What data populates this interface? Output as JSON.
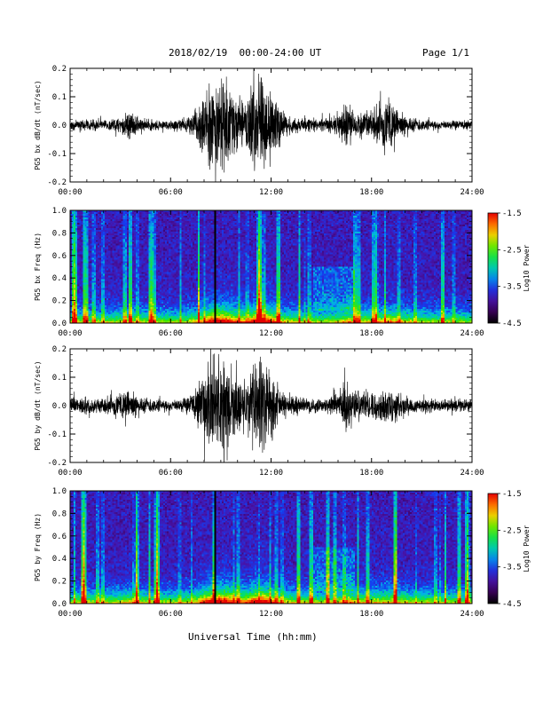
{
  "header": {
    "date_range": "2018/02/19  00:00-24:00 UT",
    "page": "Page 1/1"
  },
  "x_axis_title": "Universal Time (hh:mm)",
  "chart_data": [
    {
      "type": "line",
      "ylabel": "PG5 bx dB/dt (nT/sec)",
      "ylim": [
        -0.2,
        0.2
      ],
      "yticks": [
        "-0.2",
        "-0.1",
        "0.0",
        "0.1",
        "0.2"
      ],
      "xticks": [
        "00:00",
        "06:00",
        "12:00",
        "18:00",
        "24:00"
      ],
      "xlim_hours": [
        0,
        24
      ],
      "series": [
        {
          "envelope_hours": [
            0,
            1,
            2,
            3,
            3.5,
            4,
            5,
            6,
            7,
            7.5,
            8,
            8.5,
            9,
            9.5,
            10,
            10.5,
            11,
            11.5,
            12,
            12.5,
            13,
            14,
            15,
            16,
            16.5,
            17,
            18,
            19,
            19.5,
            20,
            21,
            22,
            23,
            24
          ],
          "envelope_amplitude": [
            0.02,
            0.025,
            0.02,
            0.03,
            0.06,
            0.035,
            0.02,
            0.02,
            0.03,
            0.06,
            0.12,
            0.2,
            0.2,
            0.15,
            0.12,
            0.09,
            0.2,
            0.2,
            0.14,
            0.07,
            0.04,
            0.03,
            0.025,
            0.04,
            0.1,
            0.05,
            0.06,
            0.09,
            0.07,
            0.04,
            0.025,
            0.02,
            0.02,
            0.02
          ]
        }
      ]
    },
    {
      "type": "heatmap",
      "ylabel": "PG5 bx Freq (Hz)",
      "ylim": [
        0.0,
        1.0
      ],
      "yticks": [
        "0.0",
        "0.2",
        "0.4",
        "0.6",
        "0.8",
        "1.0"
      ],
      "xticks": [
        "00:00",
        "06:00",
        "12:00",
        "18:00",
        "24:00"
      ],
      "colorbar": {
        "label": "Log10 Power",
        "range": [
          -4.5,
          -1.5
        ],
        "ticks": [
          "-1.5",
          "-2.5",
          "-3.5",
          "-4.5"
        ]
      }
    },
    {
      "type": "line",
      "ylabel": "PG5 by dB/dt (nT/sec)",
      "ylim": [
        -0.2,
        0.2
      ],
      "yticks": [
        "-0.2",
        "-0.1",
        "0.0",
        "0.1",
        "0.2"
      ],
      "xticks": [
        "00:00",
        "06:00",
        "12:00",
        "18:00",
        "24:00"
      ],
      "xlim_hours": [
        0,
        24
      ],
      "series": [
        {
          "envelope_hours": [
            0,
            1,
            2,
            3,
            3.5,
            4,
            5,
            6,
            7,
            7.5,
            8,
            8.5,
            9,
            9.5,
            10,
            10.5,
            11,
            11.5,
            12,
            12.5,
            13,
            14,
            15,
            16,
            16.5,
            17,
            18,
            19,
            19.5,
            20,
            21,
            22,
            23,
            24
          ],
          "envelope_amplitude": [
            0.03,
            0.035,
            0.03,
            0.04,
            0.07,
            0.04,
            0.03,
            0.025,
            0.035,
            0.07,
            0.15,
            0.2,
            0.2,
            0.17,
            0.12,
            0.1,
            0.19,
            0.2,
            0.13,
            0.07,
            0.045,
            0.035,
            0.03,
            0.045,
            0.12,
            0.06,
            0.06,
            0.07,
            0.06,
            0.04,
            0.03,
            0.025,
            0.025,
            0.025
          ]
        }
      ]
    },
    {
      "type": "heatmap",
      "ylabel": "PG5 by Freq (Hz)",
      "ylim": [
        0.0,
        1.0
      ],
      "yticks": [
        "0.0",
        "0.2",
        "0.4",
        "0.6",
        "0.8",
        "1.0"
      ],
      "xticks": [
        "00:00",
        "06:00",
        "12:00",
        "18:00",
        "24:00"
      ],
      "colorbar": {
        "label": "Log10 Power",
        "range": [
          -4.5,
          -1.5
        ],
        "ticks": [
          "-1.5",
          "-2.5",
          "-3.5",
          "-4.5"
        ]
      }
    }
  ]
}
